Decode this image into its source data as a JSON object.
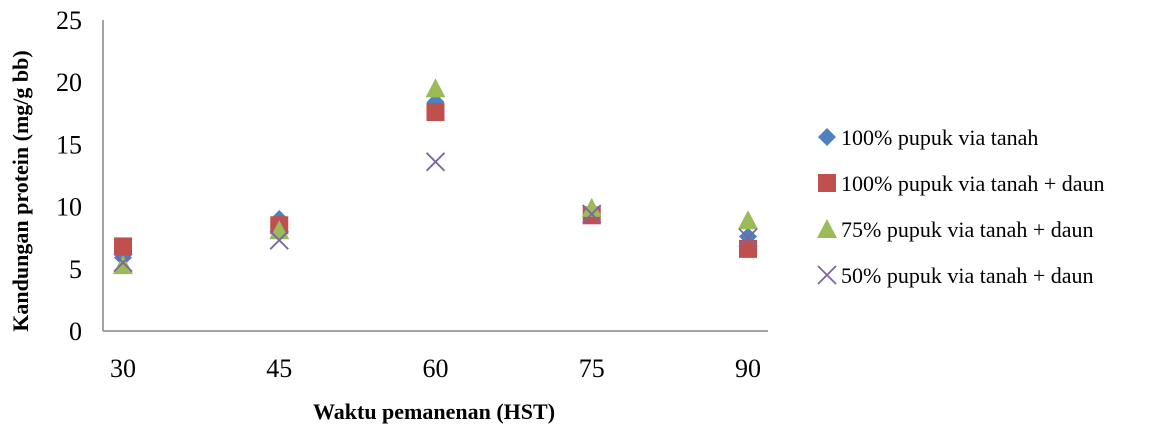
{
  "chart_data": {
    "type": "scatter",
    "xlabel": "Waktu pemanenan (HST)",
    "ylabel": "Kandungan protein (mg/g bb)",
    "x": [
      30,
      45,
      60,
      75,
      90
    ],
    "xticks": [
      "30",
      "45",
      "60",
      "75",
      "90"
    ],
    "yticks": [
      "0",
      "5",
      "10",
      "15",
      "20",
      "25"
    ],
    "ylim": [
      0,
      25
    ],
    "grid": false,
    "legend_position": "right",
    "series": [
      {
        "name": "100% pupuk via tanah",
        "marker": "diamond",
        "color": "#4F81BD",
        "values": [
          5.9,
          9.0,
          18.4,
          9.4,
          7.6
        ]
      },
      {
        "name": "100% pupuk via tanah + daun",
        "marker": "square",
        "color": "#C0504D",
        "values": [
          6.8,
          8.5,
          17.6,
          9.3,
          6.6
        ]
      },
      {
        "name": "75% pupuk via tanah + daun",
        "marker": "triangle",
        "color": "#9BBB59",
        "values": [
          5.3,
          8.1,
          19.5,
          9.9,
          8.9
        ]
      },
      {
        "name": "50% pupuk via tanah + daun",
        "marker": "x",
        "color": "#8064A2",
        "values": [
          5.5,
          7.3,
          13.6,
          9.4,
          7.5
        ]
      }
    ]
  }
}
